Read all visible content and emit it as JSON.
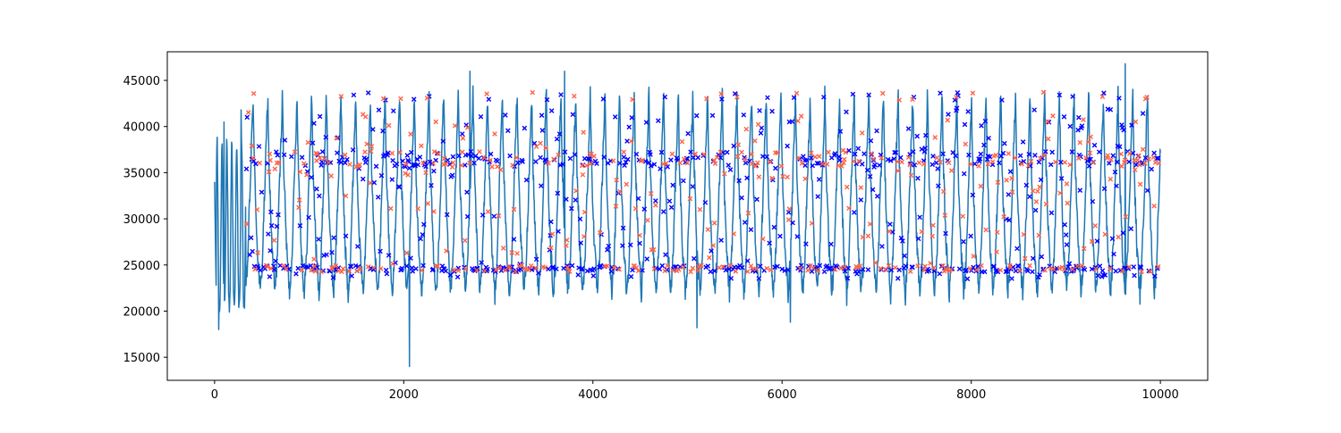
{
  "chart_data": {
    "type": "line",
    "title": "",
    "xlabel": "",
    "ylabel": "",
    "xlim": [
      -500,
      10500
    ],
    "ylim": [
      12500,
      48100
    ],
    "x_ticks": [
      0,
      2000,
      4000,
      6000,
      8000,
      10000
    ],
    "y_ticks": [
      15000,
      20000,
      25000,
      30000,
      35000,
      40000,
      45000
    ],
    "grid": false,
    "legend": "none",
    "colors": {
      "line": "#1f77b4",
      "markers_blue": "#0000ff",
      "markers_red": "#ff6347",
      "axes": "#000000",
      "background": "#ffffff"
    },
    "series": [
      {
        "kind": "line",
        "color": "#1f77b4",
        "x_range": [
          0,
          10000
        ],
        "cycle_period": 155,
        "baseline_approx": 23000,
        "upper_approx": 43000,
        "notable_points": [
          {
            "x": 0,
            "y": 34000
          },
          {
            "x": 45,
            "y": 18000
          },
          {
            "x": 100,
            "y": 40500
          },
          {
            "x": 280,
            "y": 41800
          },
          {
            "x": 2060,
            "y": 14000
          },
          {
            "x": 2700,
            "y": 46000
          },
          {
            "x": 3700,
            "y": 46000
          },
          {
            "x": 5100,
            "y": 18200
          },
          {
            "x": 6090,
            "y": 18800
          },
          {
            "x": 9630,
            "y": 46800
          }
        ]
      },
      {
        "kind": "scatter",
        "marker": "x",
        "color": "#0000ff",
        "x_range": [
          330,
          10000
        ],
        "y_band": [
          23500,
          44000
        ],
        "level_clusters": [
          24600,
          36500,
          43300
        ]
      },
      {
        "kind": "scatter",
        "marker": "x",
        "color": "#ff6347",
        "x_range": [
          330,
          10000
        ],
        "y_band": [
          24300,
          43700
        ],
        "level_clusters": [
          24600,
          36500,
          43300
        ]
      }
    ]
  }
}
